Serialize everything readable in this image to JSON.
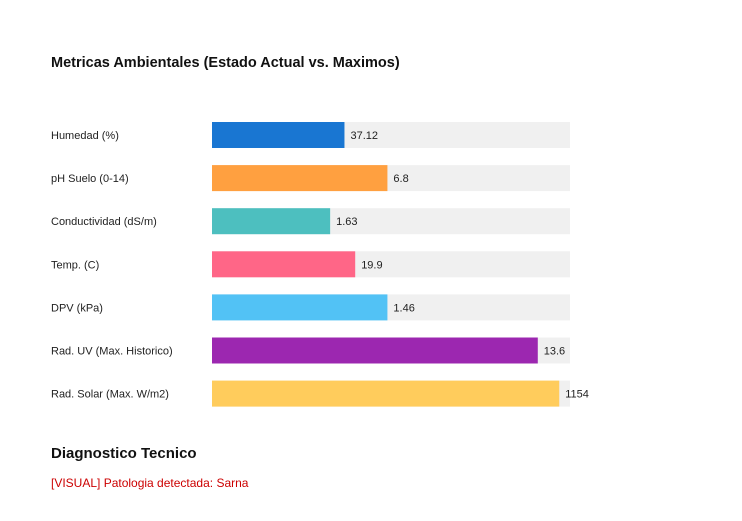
{
  "chart_data": {
    "type": "bar",
    "orientation": "horizontal",
    "title": "Metricas Ambientales (Estado Actual vs. Maximos)",
    "xlabel": "",
    "ylabel": "",
    "grid": false,
    "categories": [
      "Humedad (%)",
      "pH Suelo (0-14)",
      "Conductividad (dS/m)",
      "Temp. (C)",
      "DPV (kPa)",
      "Rad. UV (Max. Historico)",
      "Rad. Solar (Max. W/m2)"
    ],
    "values": [
      37.12,
      6.8,
      1.63,
      19.9,
      1.46,
      13.6,
      1154
    ],
    "value_labels": [
      "37.12",
      "6.8",
      "1.63",
      "19.9",
      "1.46",
      "13.6",
      "1154"
    ],
    "fill_fraction": [
      0.37,
      0.49,
      0.33,
      0.4,
      0.49,
      0.91,
      0.97
    ],
    "colors": [
      "#1976d2",
      "#ffa040",
      "#4dbfbf",
      "#ff6687",
      "#52c2f5",
      "#9c27b0",
      "#ffcc5c"
    ],
    "track_color": "#f0f0f0"
  },
  "diagnostics": {
    "title": "Diagnostico Tecnico",
    "message": "[VISUAL] Patologia detectada: Sarna",
    "message_color": "#cc0000"
  }
}
